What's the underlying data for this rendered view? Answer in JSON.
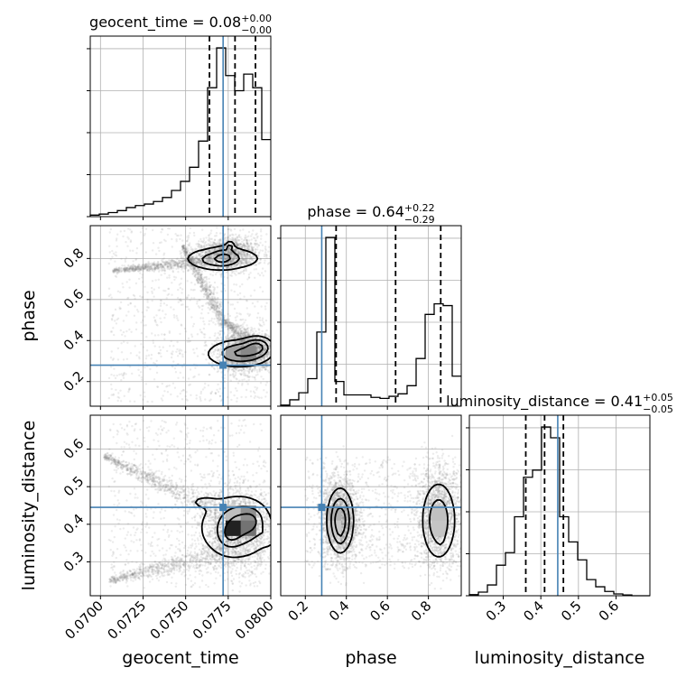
{
  "chart_data": {
    "type": "corner",
    "parameters": [
      "geocent_time",
      "phase",
      "luminosity_distance"
    ],
    "truths": {
      "geocent_time": 0.0772,
      "phase": 0.28,
      "luminosity_distance": 0.445
    },
    "truth_color": "#4682b4",
    "hist_color": "#000000",
    "sample_color": "#808080",
    "grid": true,
    "axis_labels": {
      "x": [
        "geocent_time",
        "phase",
        "luminosity_distance"
      ],
      "y": [
        "phase",
        "luminosity_distance"
      ]
    },
    "axes": {
      "geocent_time": {
        "range": [
          0.0694,
          0.08
        ],
        "ticks": [
          0.07,
          0.0725,
          0.075,
          0.0775,
          0.08
        ],
        "tick_labels": [
          "0.0700",
          "0.0725",
          "0.0750",
          "0.0775",
          "0.0800"
        ]
      },
      "phase": {
        "range": [
          0.08,
          0.96
        ],
        "ticks": [
          0.2,
          0.4,
          0.6,
          0.8
        ],
        "tick_labels": [
          "0.2",
          "0.4",
          "0.6",
          "0.8"
        ]
      },
      "luminosity_distance": {
        "range": [
          0.21,
          0.69
        ],
        "ticks": [
          0.3,
          0.4,
          0.5,
          0.6
        ],
        "tick_labels": [
          "0.3",
          "0.4",
          "0.5",
          "0.6"
        ]
      }
    },
    "titles": [
      {
        "param": "geocent_time",
        "main": "geocent_time = 0.08",
        "sup": "+0.00",
        "sub": "−0.00"
      },
      {
        "param": "phase",
        "main": "phase = 0.64",
        "sup": "+0.22",
        "sub": "−0.29"
      },
      {
        "param": "luminosity_distance",
        "main": "luminosity_distance = 0.41",
        "sup": "+0.05",
        "sub": "−0.05"
      }
    ],
    "histograms": [
      {
        "param": "geocent_time",
        "edges": [
          0.0694,
          0.06993,
          0.07046,
          0.07099,
          0.07152,
          0.07205,
          0.07258,
          0.07311,
          0.07364,
          0.07417,
          0.0747,
          0.07523,
          0.07576,
          0.07629,
          0.07682,
          0.07735,
          0.07788,
          0.07841,
          0.07894,
          0.07947,
          0.08
        ],
        "counts": [
          3,
          5,
          8,
          12,
          18,
          22,
          25,
          30,
          38,
          52,
          70,
          98,
          150,
          256,
          335,
          280,
          250,
          283,
          256,
          153
        ],
        "quantiles": [
          0.0764,
          0.0779,
          0.0791
        ]
      },
      {
        "param": "phase",
        "edges": [
          0.08,
          0.124,
          0.168,
          0.212,
          0.256,
          0.3,
          0.344,
          0.388,
          0.432,
          0.476,
          0.52,
          0.564,
          0.608,
          0.652,
          0.696,
          0.74,
          0.784,
          0.828,
          0.872,
          0.916,
          0.96
        ],
        "counts": [
          3,
          18,
          38,
          78,
          210,
          478,
          70,
          32,
          32,
          32,
          25,
          22,
          28,
          35,
          58,
          135,
          260,
          290,
          285,
          85
        ],
        "quantiles": [
          0.35,
          0.64,
          0.86
        ]
      },
      {
        "param": "luminosity_distance",
        "edges": [
          0.21,
          0.234,
          0.258,
          0.282,
          0.306,
          0.33,
          0.354,
          0.378,
          0.402,
          0.426,
          0.45,
          0.474,
          0.498,
          0.522,
          0.546,
          0.57,
          0.594,
          0.618,
          0.642,
          0.666,
          0.69
        ],
        "counts": [
          3,
          10,
          30,
          85,
          120,
          220,
          330,
          350,
          470,
          440,
          220,
          150,
          100,
          45,
          25,
          12,
          5,
          2,
          0,
          0
        ],
        "quantiles": [
          0.36,
          0.41,
          0.46
        ]
      }
    ],
    "densities": [
      {
        "x": "geocent_time",
        "y": "phase",
        "modes": [
          {
            "x": 0.0776,
            "y": 0.86,
            "sx": 0.00013,
            "sy": 0.012,
            "w": 0.14
          },
          {
            "x": 0.0773,
            "y": 0.81,
            "sx": 0.0004,
            "sy": 0.025,
            "w": 0.13
          },
          {
            "x": 0.0767,
            "y": 0.79,
            "sx": 0.0006,
            "sy": 0.02,
            "w": 0.08
          },
          {
            "x": 0.0792,
            "y": 0.37,
            "sx": 0.00045,
            "sy": 0.025,
            "w": 0.24
          },
          {
            "x": 0.0783,
            "y": 0.34,
            "sx": 0.0008,
            "sy": 0.03,
            "w": 0.22
          },
          {
            "x": 0.0772,
            "y": 0.8,
            "sx": 0.0012,
            "sy": 0.03,
            "w": 0.14
          },
          {
            "x": 0.0778,
            "y": 0.33,
            "sx": 0.0012,
            "sy": 0.04,
            "w": 0.05
          }
        ],
        "contour_levels": [
          0.1,
          0.35,
          0.7
        ],
        "scatter": [
          {
            "type": "blob",
            "n": 1800,
            "cx": 0.0786,
            "cy": 0.34,
            "sx": 0.0008,
            "sy": 0.045
          },
          {
            "type": "blob",
            "n": 1500,
            "cx": 0.0774,
            "cy": 0.82,
            "sx": 0.0009,
            "sy": 0.04
          },
          {
            "type": "curve",
            "n": 700,
            "x0": 0.0707,
            "y0": 0.74,
            "x1": 0.0765,
            "y1": 0.79,
            "spread": 0.015
          },
          {
            "type": "curve",
            "n": 600,
            "x0": 0.0748,
            "y0": 0.86,
            "x1": 0.0772,
            "y1": 0.5,
            "spread": 0.03
          },
          {
            "type": "curve",
            "n": 500,
            "x0": 0.0772,
            "y0": 0.5,
            "x1": 0.0798,
            "y1": 0.33,
            "spread": 0.03
          },
          {
            "type": "uniform",
            "n": 900,
            "x0": 0.0705,
            "x1": 0.0798,
            "y0": 0.1,
            "y1": 0.95
          }
        ]
      },
      {
        "x": "geocent_time",
        "y": "luminosity_distance",
        "modes": [
          {
            "x": 0.0782,
            "y": 0.4,
            "sx": 0.0007,
            "sy": 0.03,
            "w": 0.3
          },
          {
            "x": 0.0776,
            "y": 0.37,
            "sx": 0.0004,
            "sy": 0.02,
            "w": 0.18
          },
          {
            "x": 0.0789,
            "y": 0.41,
            "sx": 0.0004,
            "sy": 0.02,
            "w": 0.18
          },
          {
            "x": 0.0798,
            "y": 0.37,
            "sx": 0.0003,
            "sy": 0.015,
            "w": 0.1
          },
          {
            "x": 0.0779,
            "y": 0.39,
            "sx": 0.0013,
            "sy": 0.05,
            "w": 0.15
          },
          {
            "x": 0.076,
            "y": 0.46,
            "sx": 0.0006,
            "sy": 0.012,
            "w": 0.05
          }
        ],
        "contour_levels": [
          0.1,
          0.35,
          0.7
        ],
        "scatter": [
          {
            "type": "blob",
            "n": 2200,
            "cx": 0.0781,
            "cy": 0.39,
            "sx": 0.001,
            "sy": 0.05
          },
          {
            "type": "curve",
            "n": 700,
            "x0": 0.0702,
            "y0": 0.58,
            "x1": 0.0768,
            "y1": 0.44,
            "spread": 0.015
          },
          {
            "type": "curve",
            "n": 700,
            "x0": 0.0705,
            "y0": 0.25,
            "x1": 0.0775,
            "y1": 0.33,
            "spread": 0.015
          },
          {
            "type": "uniform",
            "n": 700,
            "x0": 0.0705,
            "x1": 0.0798,
            "y0": 0.23,
            "y1": 0.68
          }
        ]
      },
      {
        "x": "phase",
        "y": "luminosity_distance",
        "modes": [
          {
            "x": 0.37,
            "y": 0.41,
            "sx": 0.03,
            "sy": 0.04,
            "w": 0.5
          },
          {
            "x": 0.85,
            "y": 0.41,
            "sx": 0.04,
            "sy": 0.05,
            "w": 0.32
          },
          {
            "x": 0.86,
            "y": 0.36,
            "sx": 0.012,
            "sy": 0.015,
            "w": 0.06
          },
          {
            "x": 0.37,
            "y": 0.37,
            "sx": 0.012,
            "sy": 0.015,
            "w": 0.06
          }
        ],
        "contour_levels": [
          0.1,
          0.35,
          0.7
        ],
        "scatter": [
          {
            "type": "blob",
            "n": 2000,
            "cx": 0.37,
            "cy": 0.41,
            "sx": 0.045,
            "sy": 0.055
          },
          {
            "type": "blob",
            "n": 1600,
            "cx": 0.85,
            "cy": 0.42,
            "sx": 0.055,
            "sy": 0.065
          },
          {
            "type": "uniform",
            "n": 700,
            "x0": 0.2,
            "x1": 0.95,
            "y0": 0.28,
            "y1": 0.58
          }
        ]
      }
    ]
  }
}
